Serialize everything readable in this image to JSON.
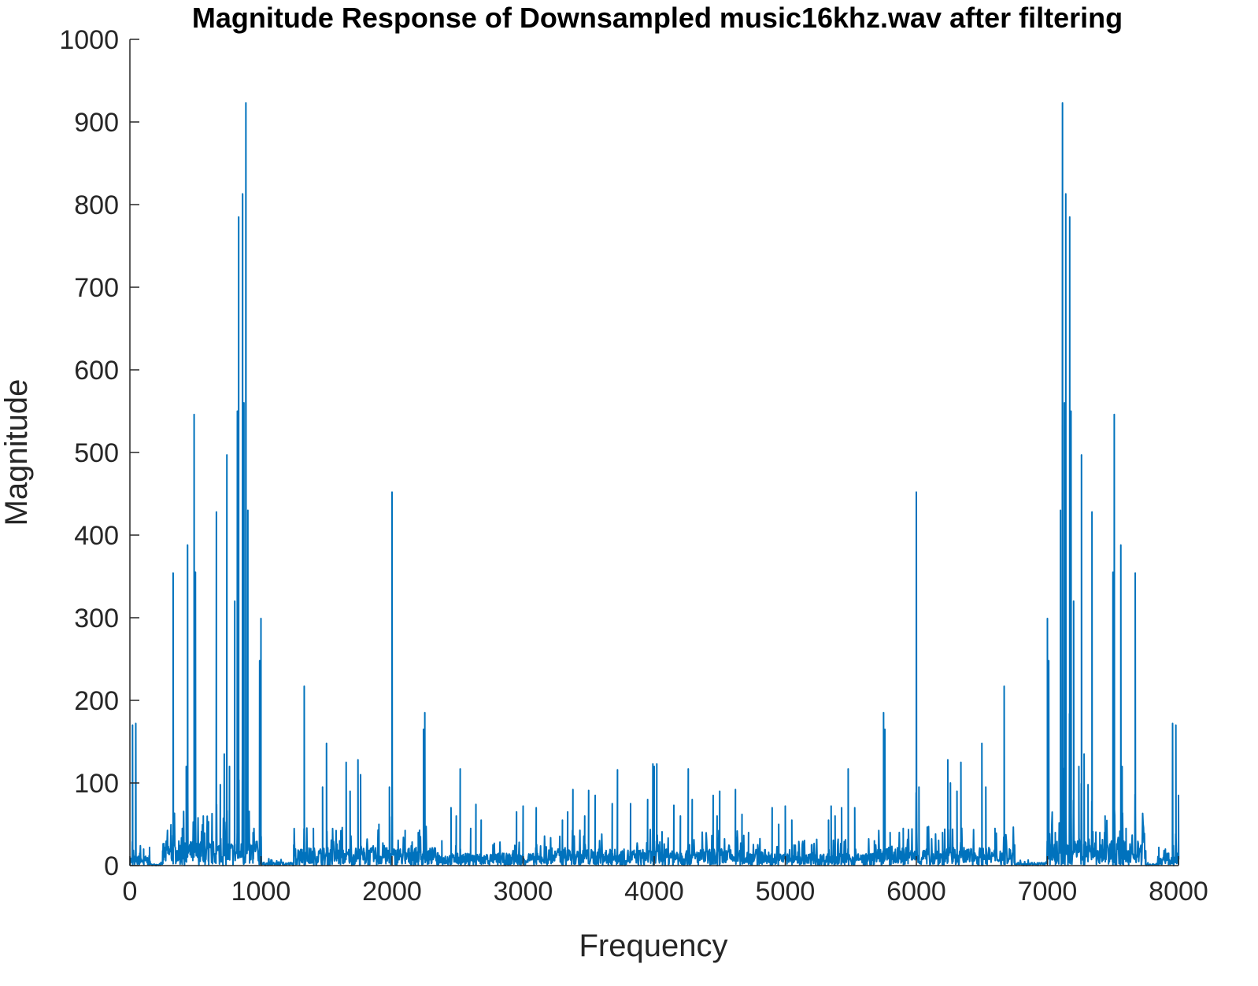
{
  "chart_data": {
    "type": "line",
    "title": "Magnitude Response of Downsampled music16khz.wav after filtering",
    "xlabel": "Frequency",
    "ylabel": "Magnitude",
    "xlim": [
      0,
      8000
    ],
    "ylim": [
      0,
      1000
    ],
    "xticks": [
      0,
      1000,
      2000,
      3000,
      4000,
      5000,
      6000,
      7000,
      8000
    ],
    "yticks": [
      0,
      100,
      200,
      300,
      400,
      500,
      600,
      700,
      800,
      900,
      1000
    ],
    "grid": false,
    "line_color": "#0072BD",
    "axis_color": "#262626",
    "series": [
      {
        "peaks": [
          [
            20,
            170
          ],
          [
            45,
            172
          ],
          [
            75,
            15
          ],
          [
            105,
            20
          ],
          [
            150,
            22
          ],
          [
            250,
            18
          ],
          [
            330,
            354
          ],
          [
            400,
            45
          ],
          [
            430,
            120
          ],
          [
            440,
            388
          ],
          [
            490,
            546
          ],
          [
            500,
            355
          ],
          [
            560,
            60
          ],
          [
            600,
            40
          ],
          [
            660,
            428
          ],
          [
            690,
            98
          ],
          [
            720,
            135
          ],
          [
            740,
            497
          ],
          [
            760,
            120
          ],
          [
            800,
            320
          ],
          [
            820,
            550
          ],
          [
            830,
            785
          ],
          [
            860,
            813
          ],
          [
            870,
            560
          ],
          [
            885,
            923
          ],
          [
            900,
            430
          ],
          [
            940,
            40
          ],
          [
            990,
            248
          ],
          [
            1000,
            299
          ],
          [
            1250,
            25
          ],
          [
            1330,
            217
          ],
          [
            1400,
            45
          ],
          [
            1470,
            95
          ],
          [
            1500,
            148
          ],
          [
            1600,
            30
          ],
          [
            1650,
            125
          ],
          [
            1680,
            90
          ],
          [
            1740,
            128
          ],
          [
            1760,
            110
          ],
          [
            1900,
            50
          ],
          [
            1980,
            95
          ],
          [
            2000,
            452
          ],
          [
            2100,
            25
          ],
          [
            2200,
            40
          ],
          [
            2240,
            165
          ],
          [
            2250,
            185
          ],
          [
            2380,
            30
          ],
          [
            2450,
            70
          ],
          [
            2490,
            60
          ],
          [
            2520,
            117
          ],
          [
            2600,
            45
          ],
          [
            2640,
            74
          ],
          [
            2680,
            55
          ],
          [
            2770,
            25
          ],
          [
            2950,
            65
          ],
          [
            3000,
            72
          ],
          [
            3100,
            70
          ],
          [
            3300,
            55
          ],
          [
            3340,
            65
          ],
          [
            3380,
            92
          ],
          [
            3470,
            60
          ],
          [
            3500,
            91
          ],
          [
            3550,
            85
          ],
          [
            3680,
            75
          ],
          [
            3720,
            116
          ],
          [
            3820,
            75
          ],
          [
            3950,
            80
          ],
          [
            3990,
            123
          ],
          [
            4000,
            120
          ],
          [
            4020,
            123
          ],
          [
            4150,
            73
          ],
          [
            4200,
            60
          ],
          [
            4260,
            117
          ],
          [
            4290,
            80
          ],
          [
            4450,
            85
          ],
          [
            4480,
            60
          ],
          [
            4500,
            90
          ],
          [
            4620,
            92
          ],
          [
            4670,
            62
          ],
          [
            4720,
            40
          ],
          [
            4900,
            70
          ],
          [
            4950,
            50
          ],
          [
            5000,
            72
          ],
          [
            5050,
            55
          ],
          [
            5200,
            25
          ],
          [
            5330,
            55
          ],
          [
            5350,
            72
          ],
          [
            5380,
            60
          ],
          [
            5430,
            70
          ],
          [
            5480,
            117
          ],
          [
            5530,
            70
          ],
          [
            5680,
            30
          ],
          [
            5750,
            185
          ],
          [
            5760,
            165
          ],
          [
            5800,
            40
          ],
          [
            5900,
            45
          ],
          [
            6000,
            452
          ],
          [
            6020,
            95
          ],
          [
            6200,
            40
          ],
          [
            6240,
            128
          ],
          [
            6260,
            100
          ],
          [
            6310,
            90
          ],
          [
            6340,
            125
          ],
          [
            6500,
            148
          ],
          [
            6530,
            95
          ],
          [
            6600,
            45
          ],
          [
            6670,
            217
          ],
          [
            6750,
            25
          ],
          [
            7000,
            299
          ],
          [
            7010,
            248
          ],
          [
            7060,
            40
          ],
          [
            7100,
            430
          ],
          [
            7115,
            923
          ],
          [
            7130,
            560
          ],
          [
            7140,
            813
          ],
          [
            7170,
            785
          ],
          [
            7180,
            550
          ],
          [
            7200,
            320
          ],
          [
            7240,
            120
          ],
          [
            7260,
            497
          ],
          [
            7280,
            135
          ],
          [
            7310,
            98
          ],
          [
            7340,
            428
          ],
          [
            7400,
            40
          ],
          [
            7440,
            60
          ],
          [
            7500,
            355
          ],
          [
            7510,
            546
          ],
          [
            7560,
            388
          ],
          [
            7570,
            120
          ],
          [
            7600,
            45
          ],
          [
            7670,
            354
          ],
          [
            7750,
            18
          ],
          [
            7850,
            22
          ],
          [
            7900,
            20
          ],
          [
            7925,
            15
          ],
          [
            7955,
            172
          ],
          [
            7980,
            170
          ],
          [
            8000,
            85
          ]
        ],
        "noise_bands": [
          [
            0,
            160,
            12
          ],
          [
            250,
            1000,
            30
          ],
          [
            1000,
            1250,
            4
          ],
          [
            1250,
            2350,
            22
          ],
          [
            2350,
            3150,
            15
          ],
          [
            3150,
            4850,
            20
          ],
          [
            4850,
            5650,
            15
          ],
          [
            5650,
            6750,
            22
          ],
          [
            6750,
            7000,
            4
          ],
          [
            7000,
            7750,
            30
          ],
          [
            7840,
            8000,
            12
          ]
        ]
      }
    ]
  }
}
